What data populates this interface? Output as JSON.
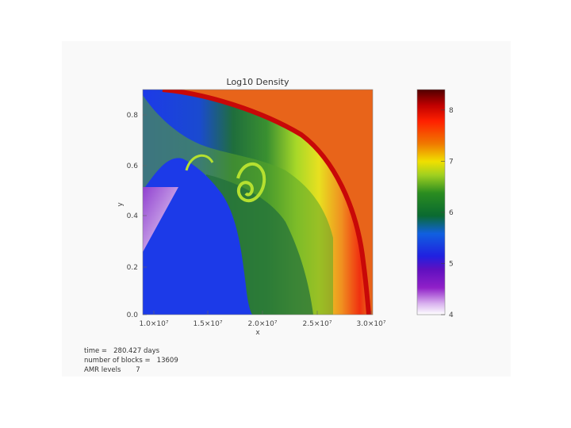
{
  "chart_data": {
    "type": "heatmap",
    "title": "Log10 Density",
    "xlabel": "x",
    "ylabel": "y",
    "x_ticks": [
      "1.0×10⁷",
      "1.5×10⁷",
      "2.0×10⁷",
      "2.5×10⁷",
      "3.0×10⁷"
    ],
    "y_ticks": [
      "0.0",
      "0.2",
      "0.4",
      "0.6",
      "0.8"
    ],
    "colorbar": {
      "ticks": [
        "4",
        "5",
        "6",
        "7",
        "8"
      ],
      "range": [
        4,
        8.4
      ],
      "colors": [
        "#ffffff",
        "#c080e0",
        "#8000c0",
        "#3030e0",
        "#1040ff",
        "#0a6a30",
        "#2a9020",
        "#a0d020",
        "#f0e000",
        "#f08000",
        "#ff2000",
        "#d00000",
        "#500000"
      ]
    },
    "field_colors": {
      "background": "#e8641a",
      "shocked_shell": "#b5e030",
      "inner_ejecta": "#1c3ae8",
      "dense_core": "#1f6e3c",
      "low_density_wedge": "#b88ad8"
    }
  },
  "info": {
    "time": "time =   280.427 days",
    "blocks": "number of blocks =   13609",
    "amr": "AMR levels       7"
  }
}
